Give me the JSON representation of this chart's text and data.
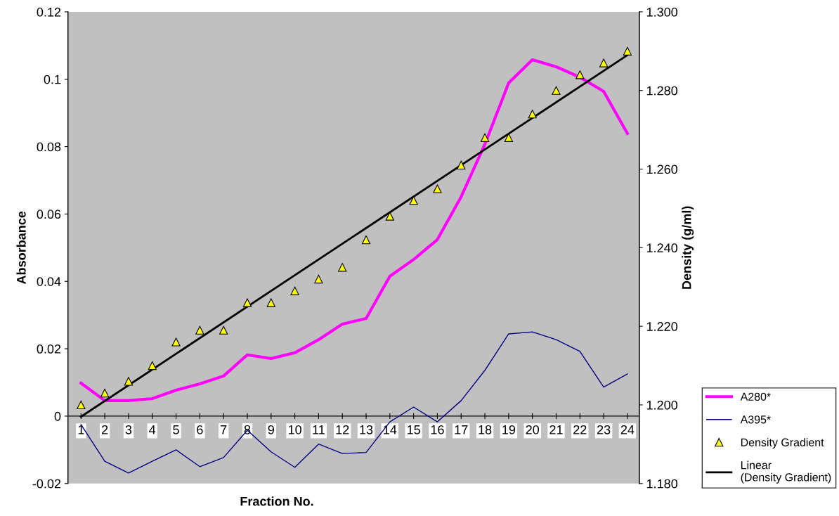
{
  "chart_data": {
    "type": "line",
    "xlabel": "Fraction No.",
    "ylabel": "Absorbance",
    "y2label": "Density (g/ml)",
    "x": [
      1,
      2,
      3,
      4,
      5,
      6,
      7,
      8,
      9,
      10,
      11,
      12,
      13,
      14,
      15,
      16,
      17,
      18,
      19,
      20,
      21,
      22,
      23,
      24
    ],
    "xlim": [
      0.45,
      24.5
    ],
    "xticks": [
      1,
      2,
      3,
      4,
      5,
      6,
      7,
      8,
      9,
      10,
      11,
      12,
      13,
      14,
      15,
      16,
      17,
      18,
      19,
      20,
      21,
      22,
      23,
      24
    ],
    "ylim": [
      -0.02,
      0.12
    ],
    "yticks": [
      -0.02,
      0,
      0.02,
      0.04,
      0.06,
      0.08,
      0.1,
      0.12
    ],
    "y2lim": [
      1.18,
      1.3
    ],
    "y2ticks": [
      {
        "value": 1.18,
        "label": "1.180"
      },
      {
        "value": 1.2,
        "label": "1.200"
      },
      {
        "value": 1.22,
        "label": "1.220"
      },
      {
        "value": 1.24,
        "label": "1.240"
      },
      {
        "value": 1.26,
        "label": "1.260"
      },
      {
        "value": 1.28,
        "label": "1.280"
      },
      {
        "value": 1.3,
        "label": "1.300"
      }
    ],
    "grid": false,
    "legend": "bottom right",
    "line_style": "solid",
    "series": [
      {
        "name": "A280*",
        "color": "#ff00ff",
        "marker": "none",
        "values": [
          0.0098,
          0.0046,
          0.0046,
          0.0052,
          0.0077,
          0.0096,
          0.0119,
          0.0182,
          0.0171,
          0.0188,
          0.0227,
          0.0273,
          0.029,
          0.0415,
          0.0465,
          0.0524,
          0.0651,
          0.0807,
          0.0989,
          0.1058,
          0.1037,
          0.1006,
          0.0964,
          0.0839
        ]
      },
      {
        "name": "A395*",
        "color": "#000080",
        "marker": "none",
        "values": [
          -0.0025,
          -0.0134,
          -0.0169,
          -0.0134,
          -0.01,
          -0.015,
          -0.0123,
          -0.0042,
          -0.0106,
          -0.0152,
          -0.0083,
          -0.0111,
          -0.0108,
          -0.0017,
          0.0027,
          -0.0017,
          0.0046,
          0.0136,
          0.0244,
          0.025,
          0.0227,
          0.0192,
          0.0086,
          0.0125
        ]
      },
      {
        "name": "Density Gradient",
        "type": "scatter",
        "axis": "y2",
        "color": "#ffff00",
        "marker": "triangle",
        "values": [
          1.2,
          1.203,
          1.206,
          1.21,
          1.216,
          1.219,
          1.219,
          1.226,
          1.226,
          1.229,
          1.232,
          1.235,
          1.242,
          1.248,
          1.252,
          1.255,
          1.261,
          1.268,
          1.268,
          1.274,
          1.28,
          1.284,
          1.287,
          1.29
        ]
      },
      {
        "name": "Linear (Density Gradient)",
        "type": "line",
        "axis": "y2",
        "color": "#000000",
        "marker": "none",
        "x": [
          1,
          24
        ],
        "values": [
          1.197,
          1.289
        ]
      }
    ]
  }
}
